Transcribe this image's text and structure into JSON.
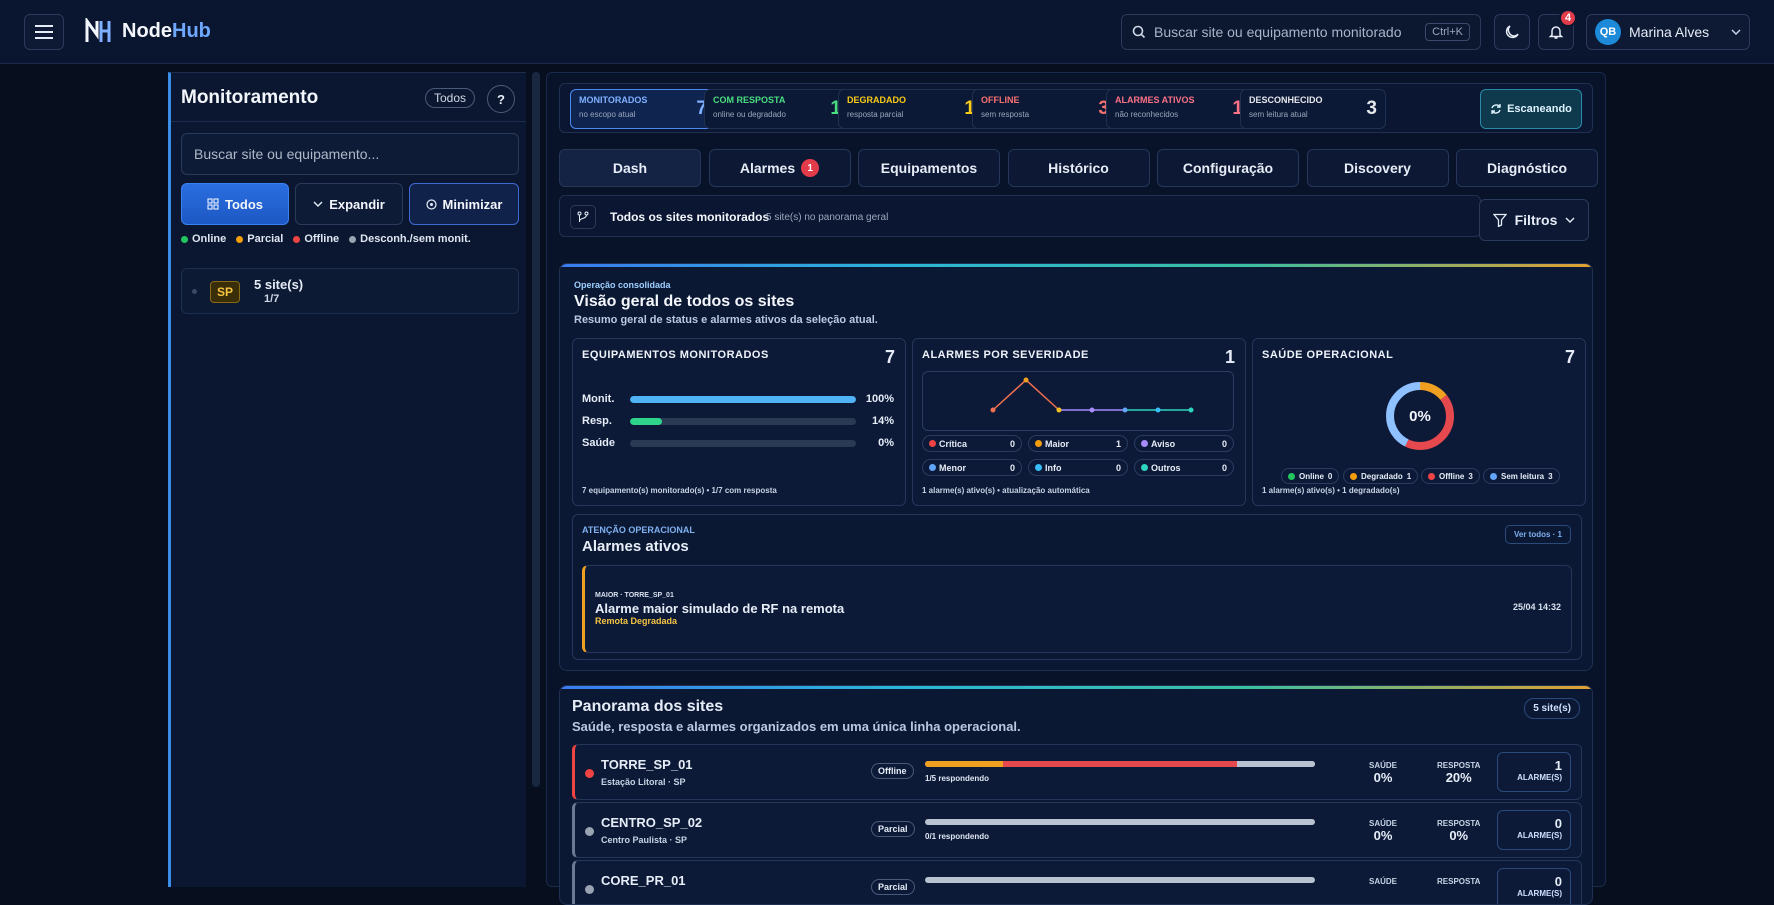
{
  "app": {
    "logo_node": "Node",
    "logo_hub": "Hub"
  },
  "top": {
    "search_placeholder": "Buscar site ou equipamento monitorado",
    "shortcut": "Ctrl+K",
    "notifications": "4",
    "user_initials": "QB",
    "user_name": "Marina Alves"
  },
  "sidebar": {
    "title": "Monitoramento",
    "filter_badge": "Todos",
    "help": "?",
    "search_placeholder": "Buscar site ou equipamento...",
    "buttons": {
      "todos": "Todos",
      "expandir": "Expandir",
      "minimizar": "Minimizar"
    },
    "legend": [
      {
        "label": "Online",
        "color": "#22c55e"
      },
      {
        "label": "Parcial",
        "color": "#f59e0b"
      },
      {
        "label": "Offline",
        "color": "#ef4444"
      },
      {
        "label": "Desconh./sem monit.",
        "color": "#9aa3b2"
      }
    ],
    "group": {
      "badge": "SP",
      "label": "5 site(s)",
      "count": "1/7"
    }
  },
  "kpis": [
    {
      "label": "MONITORADOS",
      "sub": "no escopo atual",
      "value": "7",
      "color": "#7fb0ff"
    },
    {
      "label": "COM RESPOSTA",
      "sub": "online ou degradado",
      "value": "1",
      "color": "#4ade80"
    },
    {
      "label": "DEGRADADO",
      "sub": "resposta parcial",
      "value": "1",
      "color": "#facc15"
    },
    {
      "label": "OFFLINE",
      "sub": "sem resposta",
      "value": "3",
      "color": "#f87171"
    },
    {
      "label": "ALARMES ATIVOS",
      "sub": "não reconhecidos",
      "value": "1",
      "color": "#fb7185"
    },
    {
      "label": "DESCONHECIDO",
      "sub": "sem leitura atual",
      "value": "3",
      "color": "#e5e7eb"
    }
  ],
  "scan_label": "Escaneando",
  "tabs": [
    {
      "label": "Dash"
    },
    {
      "label": "Alarmes",
      "badge": "1"
    },
    {
      "label": "Equipamentos"
    },
    {
      "label": "Histórico"
    },
    {
      "label": "Configuração"
    },
    {
      "label": "Discovery"
    },
    {
      "label": "Diagnóstico"
    }
  ],
  "scope": {
    "title": "Todos os sites monitorados",
    "sub": "5 site(s) no panorama geral",
    "filters": "Filtros"
  },
  "overview": {
    "kicker": "Operação consolidada",
    "title": "Visão geral de todos os sites",
    "sub": "Resumo geral de status e alarmes ativos da seleção atual.",
    "equip": {
      "title": "EQUIPAMENTOS MONITORADOS",
      "value": "7",
      "bars": [
        {
          "label": "Monit.",
          "pct": "100%",
          "frac": 1.0,
          "color": "#4fb3f6"
        },
        {
          "label": "Resp.",
          "pct": "14%",
          "frac": 0.14,
          "color": "#2dd48a"
        },
        {
          "label": "Saúde",
          "pct": "0%",
          "frac": 0.0,
          "color": "#4fb3f6"
        }
      ],
      "footer": "7 equipamento(s) monitorado(s) • 1/7 com resposta"
    },
    "alarms": {
      "title": "ALARMES POR SEVERIDADE",
      "value": "1",
      "trend": [
        0,
        1,
        0,
        0,
        0,
        0,
        0
      ],
      "severities": [
        {
          "label": "Crítica",
          "n": "0",
          "color": "#ef4444"
        },
        {
          "label": "Maior",
          "n": "1",
          "color": "#f59e0b"
        },
        {
          "label": "Aviso",
          "n": "0",
          "color": "#a78bfa"
        },
        {
          "label": "Menor",
          "n": "0",
          "color": "#60a5fa"
        },
        {
          "label": "Info",
          "n": "0",
          "color": "#38bdf8"
        },
        {
          "label": "Outros",
          "n": "0",
          "color": "#2dd4bf"
        }
      ],
      "footer": "1 alarme(s) ativo(s) • atualização automática"
    },
    "health": {
      "title": "SAÚDE OPERACIONAL",
      "value": "7",
      "pct": "0%",
      "chips": [
        {
          "label": "Online",
          "n": "0",
          "color": "#22c55e"
        },
        {
          "label": "Degradado",
          "n": "1",
          "color": "#f59e0b"
        },
        {
          "label": "Offline",
          "n": "3",
          "color": "#ef4444"
        },
        {
          "label": "Sem leitura",
          "n": "3",
          "color": "#60a5fa"
        }
      ],
      "footer": "1 alarme(s) ativo(s) • 1 degradado(s)"
    },
    "attention": {
      "kicker": "ATENÇÃO OPERACIONAL",
      "title": "Alarmes ativos",
      "see_all": "Ver todos · 1",
      "alarm": {
        "kicker": "MAIOR · TORRE_SP_01",
        "title": "Alarme maior simulado de RF na remota",
        "sub": "Remota Degradada",
        "date": "25/04 14:32"
      }
    }
  },
  "panorama": {
    "title": "Panorama dos sites",
    "sub": "Saúde, resposta e alarmes organizados em uma única linha operacional.",
    "badge": "5 site(s)",
    "health_label": "SAÚDE",
    "resp_label": "RESPOSTA",
    "alarms_label": "ALARME(S)",
    "sites": [
      {
        "name": "TORRE_SP_01",
        "loc": "Estação Litoral · SP",
        "status": "Offline",
        "dot": "#ef4444",
        "accent": "#ef4444",
        "segments": [
          {
            "frac": 0.2,
            "color": "#f0a020"
          },
          {
            "frac": 0.6,
            "color": "#e5484d"
          },
          {
            "frac": 0.2,
            "color": "#b9c2d0"
          }
        ],
        "resp_text": "1/5 respondendo",
        "health": "0%",
        "resp": "20%",
        "alarms": "1"
      },
      {
        "name": "CENTRO_SP_02",
        "loc": "Centro Paulista · SP",
        "status": "Parcial",
        "dot": "#9aa3b2",
        "accent": "#6b7a94",
        "segments": [
          {
            "frac": 1.0,
            "color": "#b9c2d0"
          }
        ],
        "resp_text": "0/1 respondendo",
        "health": "0%",
        "resp": "0%",
        "alarms": "0"
      },
      {
        "name": "CORE_PR_01",
        "loc": "",
        "status": "Parcial",
        "dot": "#9aa3b2",
        "accent": "#6b7a94",
        "segments": [
          {
            "frac": 1.0,
            "color": "#b9c2d0"
          }
        ],
        "resp_text": "",
        "health": "",
        "resp": "",
        "alarms": "0"
      }
    ]
  }
}
